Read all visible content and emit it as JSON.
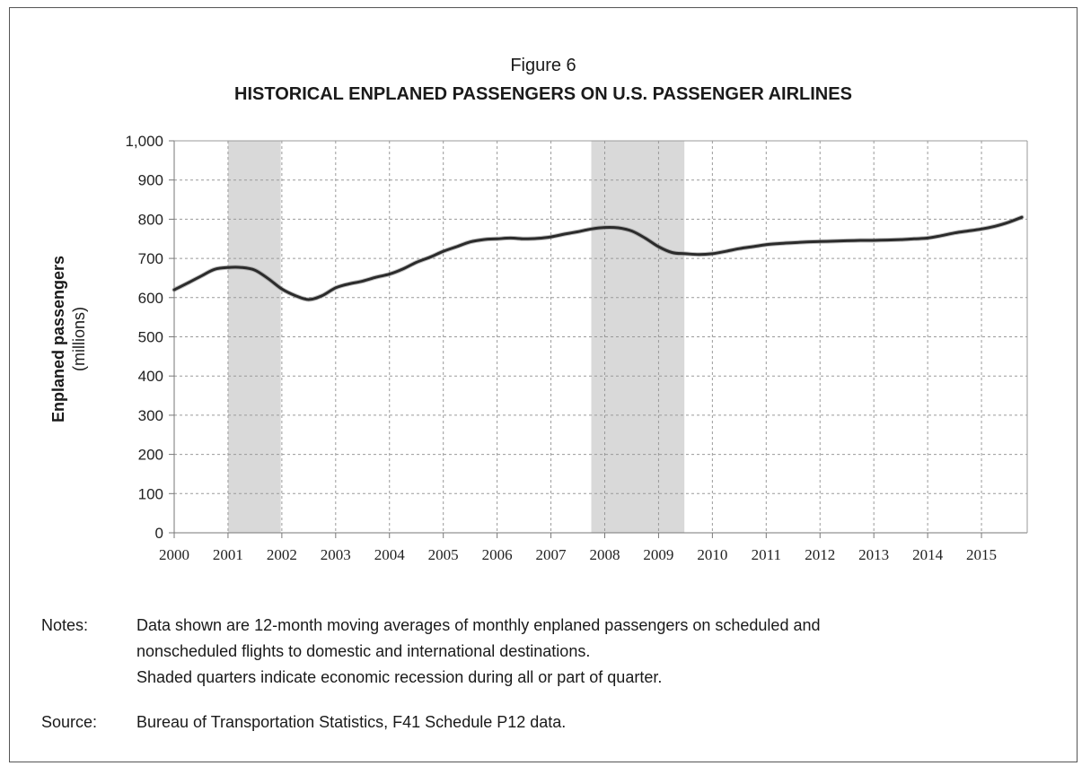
{
  "chart_data": {
    "type": "line",
    "title": "Figure 6",
    "subtitle": "HISTORICAL ENPLANED PASSENGERS ON U.S. PASSENGER AIRLINES",
    "ylabel": "Enplaned passengers",
    "ylabel_unit": "(millions)",
    "xlabel": "",
    "ylim": [
      0,
      1000
    ],
    "yticks": [
      0,
      100,
      200,
      300,
      400,
      500,
      600,
      700,
      800,
      900,
      1000
    ],
    "ytick_labels": [
      "0",
      "100",
      "200",
      "300",
      "400",
      "500",
      "600",
      "700",
      "800",
      "900",
      "1,000"
    ],
    "xlim": [
      2000,
      2015.85
    ],
    "xticks": [
      2000,
      2001,
      2002,
      2003,
      2004,
      2005,
      2006,
      2007,
      2008,
      2009,
      2010,
      2011,
      2012,
      2013,
      2014,
      2015
    ],
    "xtick_labels": [
      "2000",
      "2001",
      "2002",
      "2003",
      "2004",
      "2005",
      "2006",
      "2007",
      "2008",
      "2009",
      "2010",
      "2011",
      "2012",
      "2013",
      "2014",
      "2015"
    ],
    "grid": true,
    "recessions": [
      {
        "start": 2001.0,
        "end": 2001.98
      },
      {
        "start": 2007.75,
        "end": 2009.48
      }
    ],
    "series": [
      {
        "color": "#2b2b2b",
        "x": [
          2000.0,
          2000.25,
          2000.5,
          2000.75,
          2001.0,
          2001.25,
          2001.5,
          2001.75,
          2002.0,
          2002.25,
          2002.5,
          2002.75,
          2003.0,
          2003.25,
          2003.5,
          2003.75,
          2004.0,
          2004.25,
          2004.5,
          2004.75,
          2005.0,
          2005.25,
          2005.5,
          2005.75,
          2006.0,
          2006.25,
          2006.5,
          2006.75,
          2007.0,
          2007.25,
          2007.5,
          2007.75,
          2008.0,
          2008.25,
          2008.5,
          2008.75,
          2009.0,
          2009.25,
          2009.5,
          2009.75,
          2010.0,
          2010.25,
          2010.5,
          2010.75,
          2011.0,
          2011.25,
          2011.5,
          2011.75,
          2012.0,
          2012.25,
          2012.5,
          2012.75,
          2013.0,
          2013.25,
          2013.5,
          2013.75,
          2014.0,
          2014.25,
          2014.5,
          2014.75,
          2015.0,
          2015.25,
          2015.5,
          2015.75
        ],
        "y": [
          620,
          637,
          655,
          672,
          677,
          677,
          670,
          648,
          622,
          605,
          595,
          605,
          625,
          635,
          642,
          652,
          660,
          673,
          690,
          703,
          718,
          730,
          742,
          748,
          750,
          752,
          750,
          751,
          755,
          762,
          768,
          775,
          779,
          778,
          770,
          752,
          730,
          715,
          712,
          710,
          712,
          718,
          725,
          730,
          735,
          738,
          740,
          742,
          743,
          744,
          745,
          746,
          746,
          747,
          748,
          750,
          752,
          758,
          765,
          770,
          775,
          782,
          792,
          805
        ]
      }
    ]
  },
  "notes": {
    "label": "Notes:",
    "line1": "Data shown are 12-month moving averages of monthly enplaned passengers on scheduled and",
    "line2": "nonscheduled flights to domestic and international destinations.",
    "line3": "Shaded quarters indicate economic recession during all or part of quarter."
  },
  "source": {
    "label": "Source:",
    "text": "Bureau of Transportation Statistics, F41 Schedule P12 data."
  }
}
